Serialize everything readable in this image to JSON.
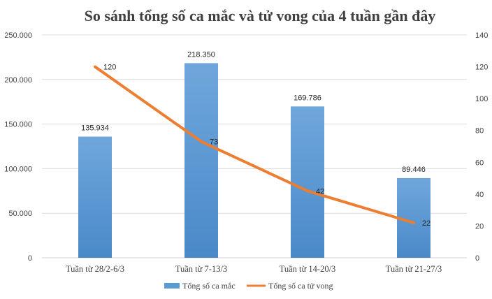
{
  "chart_data": {
    "type": "bar",
    "title": "So sánh tổng số ca mắc và tử vong của 4 tuần gần đây",
    "categories": [
      "Tuần từ 28/2-6/3",
      "Tuần từ 7-13/3",
      "Tuần từ 14-20/3",
      "Tuần từ 21-27/3"
    ],
    "series": [
      {
        "name": "Tổng số ca mắc",
        "type": "bar",
        "axis": "left",
        "color": "#5b9bd5",
        "values": [
          135934,
          218350,
          169786,
          89446
        ],
        "labels": [
          "135.934",
          "218.350",
          "169.786",
          "89.446"
        ]
      },
      {
        "name": "Tổng số ca tử vong",
        "type": "line",
        "axis": "right",
        "color": "#ed7d31",
        "values": [
          120,
          73,
          42,
          22
        ],
        "labels": [
          "120",
          "73",
          "42",
          "22"
        ]
      }
    ],
    "y_left": {
      "ylim": [
        0,
        250000
      ],
      "ticks": [
        0,
        50000,
        100000,
        150000,
        200000,
        250000
      ],
      "tick_labels": [
        "0",
        "50.000",
        "100.000",
        "150.000",
        "200.000",
        "250.000"
      ]
    },
    "y_right": {
      "ylim": [
        0,
        140
      ],
      "ticks": [
        0,
        20,
        40,
        60,
        80,
        100,
        120,
        140
      ],
      "tick_labels": [
        "0",
        "20",
        "40",
        "60",
        "80",
        "100",
        "120",
        "140"
      ]
    },
    "grid": true,
    "legend_position": "bottom"
  }
}
